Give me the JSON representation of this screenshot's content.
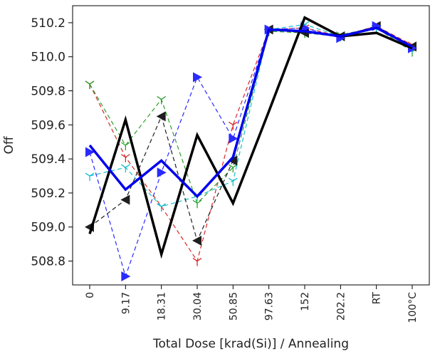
{
  "chart_data": {
    "type": "line",
    "xlabel": "Total Dose [krad(Si)] / Annealing",
    "ylabel": "Off",
    "categories": [
      "0",
      "9.17",
      "18.31",
      "30.04",
      "50.85",
      "97.63",
      "152",
      "202.2",
      "RT",
      "100°C"
    ],
    "ylim": [
      508.66,
      510.3
    ],
    "yticks": [
      "508.8",
      "509.0",
      "509.2",
      "509.4",
      "509.6",
      "509.8",
      "510.0",
      "510.2"
    ],
    "grid": false,
    "legend": "none",
    "series": [
      {
        "color": "#d62728",
        "style": "dashed",
        "marker": "tri_down",
        "values": [
          509.84,
          509.41,
          509.12,
          508.8,
          509.6,
          510.16,
          510.17,
          510.12,
          510.18,
          510.07
        ]
      },
      {
        "color": "#2ca02c",
        "style": "dashed",
        "marker": "tri_down",
        "values": [
          509.84,
          509.48,
          509.75,
          509.14,
          509.35,
          510.15,
          510.14,
          510.13,
          510.17,
          510.03
        ]
      },
      {
        "color": "#17becf",
        "style": "dashed",
        "marker": "tri_down",
        "values": [
          509.3,
          509.35,
          509.12,
          509.18,
          509.27,
          510.16,
          510.19,
          510.12,
          510.17,
          510.05
        ]
      },
      {
        "color": "#1f1f1f",
        "style": "dashed",
        "marker": "triangle_left",
        "values": [
          509.0,
          509.16,
          509.65,
          508.92,
          509.39,
          510.16,
          510.14,
          510.12,
          510.18,
          510.06
        ]
      },
      {
        "color": "#2a2aff",
        "style": "dashed",
        "marker": "triangle_right",
        "values": [
          509.44,
          508.71,
          509.32,
          509.88,
          509.52,
          510.16,
          510.17,
          510.11,
          510.18,
          510.05
        ]
      },
      {
        "color": "#000000",
        "style": "solid",
        "width": 3.5,
        "marker": "none",
        "values": [
          508.96,
          509.63,
          508.84,
          509.54,
          509.14,
          509.68,
          510.23,
          510.12,
          510.14,
          510.05
        ]
      },
      {
        "color": "#0000ee",
        "style": "solid",
        "width": 3.5,
        "marker": "none",
        "values": [
          509.48,
          509.22,
          509.39,
          509.18,
          509.41,
          510.16,
          510.15,
          510.12,
          510.17,
          510.06
        ]
      }
    ]
  }
}
